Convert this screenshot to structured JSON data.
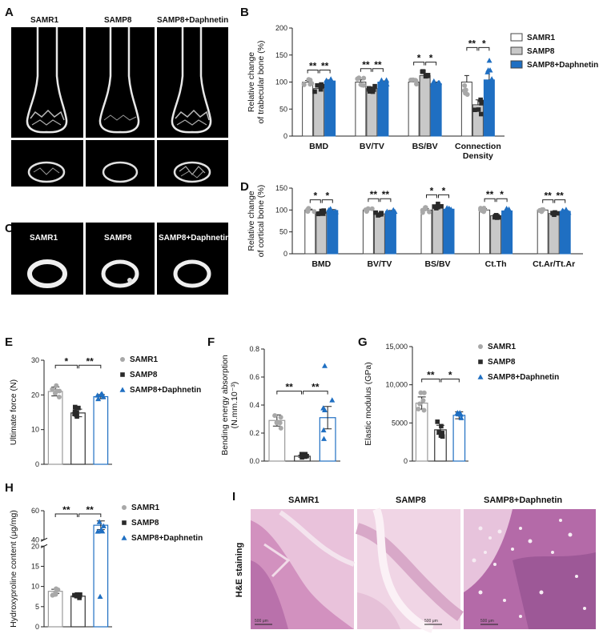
{
  "panels": {
    "A": {
      "label": "A",
      "headers": [
        "SAMR1",
        "SAMP8",
        "SAMP8+Daphnetin"
      ]
    },
    "C": {
      "label": "C",
      "headers": [
        "SAMR1",
        "SAMP8",
        "SAMP8+Daphnetin"
      ]
    },
    "I": {
      "label": "I",
      "headers": [
        "SAMR1",
        "SAMP8",
        "SAMP8+Daphnetin"
      ],
      "side_label": "H&E staining",
      "scale_bar": "500 μm"
    }
  },
  "legend": [
    "SAMR1",
    "SAMP8",
    "SAMP8+Daphnetin"
  ],
  "colors": {
    "samr1": "#ffffff",
    "samp8": "#c8c8c8",
    "daph": "#1f6fc2",
    "samr1_pt": "#a8a8a8",
    "samp8_pt": "#2a2a2a"
  },
  "chart_data": [
    {
      "id": "B",
      "label": "B",
      "type": "bar",
      "ylabel": [
        "Relative change",
        "of trabecular bone (%)"
      ],
      "ylim": [
        0,
        200
      ],
      "yticks": [
        0,
        50,
        100,
        150,
        200
      ],
      "categories": [
        "BMD",
        "BV/TV",
        "BS/BV",
        "Connection Density"
      ],
      "category_lines": [
        [
          "BMD"
        ],
        [
          "BV/TV"
        ],
        [
          "BS/BV"
        ],
        [
          "Connection",
          "Density"
        ]
      ],
      "series": [
        {
          "name": "SAMR1",
          "values": [
            100,
            100,
            100,
            100
          ]
        },
        {
          "name": "SAMP8",
          "values": [
            88,
            88,
            112,
            58
          ]
        },
        {
          "name": "SAMP8+Daphnetin",
          "values": [
            102,
            100,
            97,
            104
          ]
        }
      ],
      "errors": [
        [
          3,
          4,
          3,
          12
        ],
        [
          4,
          3,
          4,
          9
        ],
        [
          2,
          2,
          3,
          18
        ]
      ],
      "significance": [
        [
          "**",
          "**"
        ],
        [
          "**",
          "**"
        ],
        [
          "*",
          "*"
        ],
        [
          "**",
          "*"
        ]
      ],
      "legend": "top-right"
    },
    {
      "id": "D",
      "label": "D",
      "type": "bar",
      "ylabel": [
        "Relative change",
        "of cortical bone (%)"
      ],
      "ylim": [
        0,
        150
      ],
      "yticks": [
        0,
        50,
        100,
        150
      ],
      "categories": [
        "BMD",
        "BV/TV",
        "BS/BV",
        "Ct.Th",
        "Ct.Ar/Tt.Ar"
      ],
      "category_lines": [
        [
          "BMD"
        ],
        [
          "BV/TV"
        ],
        [
          "BS/BV"
        ],
        [
          "Ct.Th"
        ],
        [
          "Ct.Ar/Tt.Ar"
        ]
      ],
      "series": [
        {
          "name": "SAMR1",
          "values": [
            100,
            100,
            100,
            100,
            100
          ]
        },
        {
          "name": "SAMP8",
          "values": [
            95,
            91,
            109,
            87,
            92
          ]
        },
        {
          "name": "SAMP8+Daphnetin",
          "values": [
            99,
            97,
            102,
            98,
            97
          ]
        }
      ],
      "errors": [
        [
          2,
          3,
          3,
          3,
          2
        ],
        [
          2,
          2,
          3,
          3,
          2
        ],
        [
          2,
          2,
          2,
          3,
          2
        ]
      ],
      "significance": [
        [
          "*",
          "*"
        ],
        [
          "**",
          "**"
        ],
        [
          "*",
          "*"
        ],
        [
          "**",
          "*"
        ],
        [
          "**",
          "**"
        ]
      ]
    },
    {
      "id": "E",
      "label": "E",
      "type": "bar",
      "ylabel": [
        "Ultimate force (N)"
      ],
      "ylim": [
        0,
        30
      ],
      "yticks": [
        0,
        10,
        20,
        30
      ],
      "ytick_labels": [
        "0",
        "10",
        "20",
        "30"
      ],
      "categories": [
        "SAMR1",
        "SAMP8",
        "SAMP8+Daphnetin"
      ],
      "values": [
        21,
        14.8,
        19.5
      ],
      "errors": [
        1.3,
        1.1,
        0.6
      ],
      "significance": [
        "*",
        "**"
      ],
      "legend": "right"
    },
    {
      "id": "F",
      "label": "F",
      "type": "bar",
      "ylabel": [
        "Bending energy absorption",
        "(N.mm.10⁻³)"
      ],
      "ylim": [
        0,
        0.8
      ],
      "yticks": [
        0,
        0.2,
        0.4,
        0.6,
        0.8
      ],
      "ytick_labels": [
        "0.0",
        "0.2",
        "0.4",
        "0.6",
        "0.8"
      ],
      "categories": [
        "SAMR1",
        "SAMP8",
        "SAMP8+Daphnetin"
      ],
      "values": [
        0.29,
        0.035,
        0.31
      ],
      "errors": [
        0.04,
        0.008,
        0.08
      ],
      "significance": [
        "**",
        "**"
      ]
    },
    {
      "id": "G",
      "label": "G",
      "type": "bar",
      "ylabel": [
        "Elastic modulus (GPa)"
      ],
      "ylim": [
        0,
        15000
      ],
      "yticks": [
        0,
        5000,
        10000,
        15000
      ],
      "ytick_labels": [
        "0",
        "5000",
        "10,000",
        "15,000"
      ],
      "categories": [
        "SAMR1",
        "SAMP8",
        "SAMP8+Daphnetin"
      ],
      "values": [
        7600,
        4100,
        6000
      ],
      "errors": [
        800,
        600,
        450
      ],
      "significance": [
        "**",
        "*"
      ],
      "legend": "right"
    },
    {
      "id": "H",
      "label": "H",
      "type": "bar",
      "ylabel": [
        "Hydroxyproline content (μg/mg)"
      ],
      "ylim": [
        0,
        60
      ],
      "yticks": [
        0,
        5,
        10,
        15,
        20,
        40,
        60
      ],
      "ytick_labels": [
        "0",
        "5",
        "10",
        "15",
        "20",
        "40",
        "60"
      ],
      "axis_break": [
        20,
        40
      ],
      "categories": [
        "SAMR1",
        "SAMP8",
        "SAMP8+Daphnetin"
      ],
      "values": [
        8.8,
        7.6,
        50
      ],
      "errors": [
        0.5,
        0.3,
        3
      ],
      "significance": [
        "**",
        "**"
      ],
      "legend": "right"
    }
  ]
}
